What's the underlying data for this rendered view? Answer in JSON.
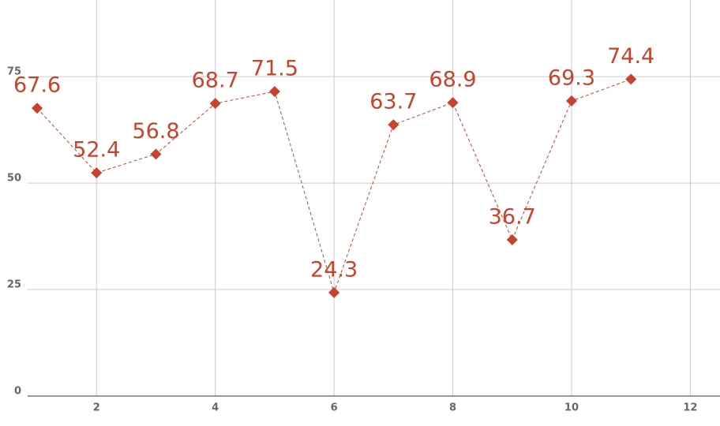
{
  "chart_data": {
    "type": "line",
    "x": [
      1,
      2,
      3,
      4,
      5,
      6,
      7,
      8,
      9,
      10,
      11
    ],
    "values": [
      67.6,
      52.4,
      56.8,
      68.7,
      71.5,
      24.3,
      63.7,
      68.9,
      36.7,
      69.3,
      74.4
    ],
    "color": "#c8432b",
    "xlim": [
      0.84,
      12.5
    ],
    "xticks": [
      2,
      4,
      6,
      8,
      10,
      12
    ],
    "ylim": [
      0,
      93
    ],
    "yticks": [
      0,
      25,
      50,
      75
    ],
    "grid": true
  }
}
